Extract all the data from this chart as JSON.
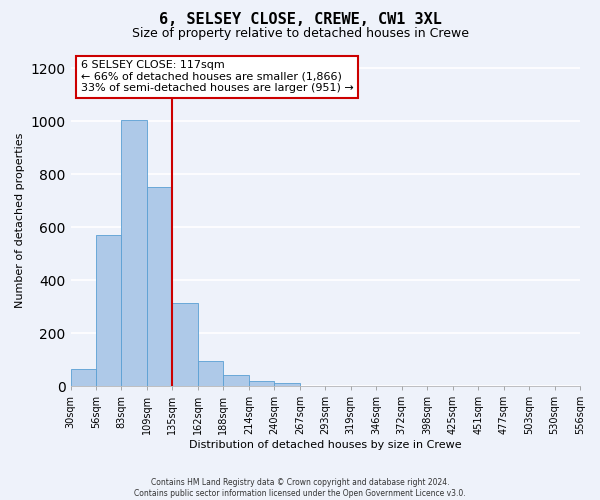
{
  "title": "6, SELSEY CLOSE, CREWE, CW1 3XL",
  "subtitle": "Size of property relative to detached houses in Crewe",
  "xlabel": "Distribution of detached houses by size in Crewe",
  "ylabel": "Number of detached properties",
  "footer_line1": "Contains HM Land Registry data © Crown copyright and database right 2024.",
  "footer_line2": "Contains public sector information licensed under the Open Government Licence v3.0.",
  "annotation_line1": "6 SELSEY CLOSE: 117sqm",
  "annotation_line2": "← 66% of detached houses are smaller (1,866)",
  "annotation_line3": "33% of semi-detached houses are larger (951) →",
  "bin_labels": [
    "30sqm",
    "56sqm",
    "83sqm",
    "109sqm",
    "135sqm",
    "162sqm",
    "188sqm",
    "214sqm",
    "240sqm",
    "267sqm",
    "293sqm",
    "319sqm",
    "346sqm",
    "372sqm",
    "398sqm",
    "425sqm",
    "451sqm",
    "477sqm",
    "503sqm",
    "530sqm",
    "556sqm"
  ],
  "bar_values": [
    65,
    570,
    1005,
    750,
    315,
    95,
    40,
    20,
    10,
    0,
    0,
    0,
    0,
    0,
    0,
    0,
    0,
    0,
    0,
    0
  ],
  "bar_color": "#aec9e8",
  "bar_edge_color": "#5a9fd4",
  "vline_color": "#cc0000",
  "annotation_box_color": "#cc0000",
  "ylim": [
    0,
    1250
  ],
  "yticks": [
    0,
    200,
    400,
    600,
    800,
    1000,
    1200
  ],
  "background_color": "#eef2fa",
  "plot_background": "#eef2fa",
  "grid_color": "#ffffff",
  "title_fontsize": 11,
  "subtitle_fontsize": 9,
  "annotation_fontsize": 8,
  "axis_label_fontsize": 8,
  "tick_fontsize": 7
}
